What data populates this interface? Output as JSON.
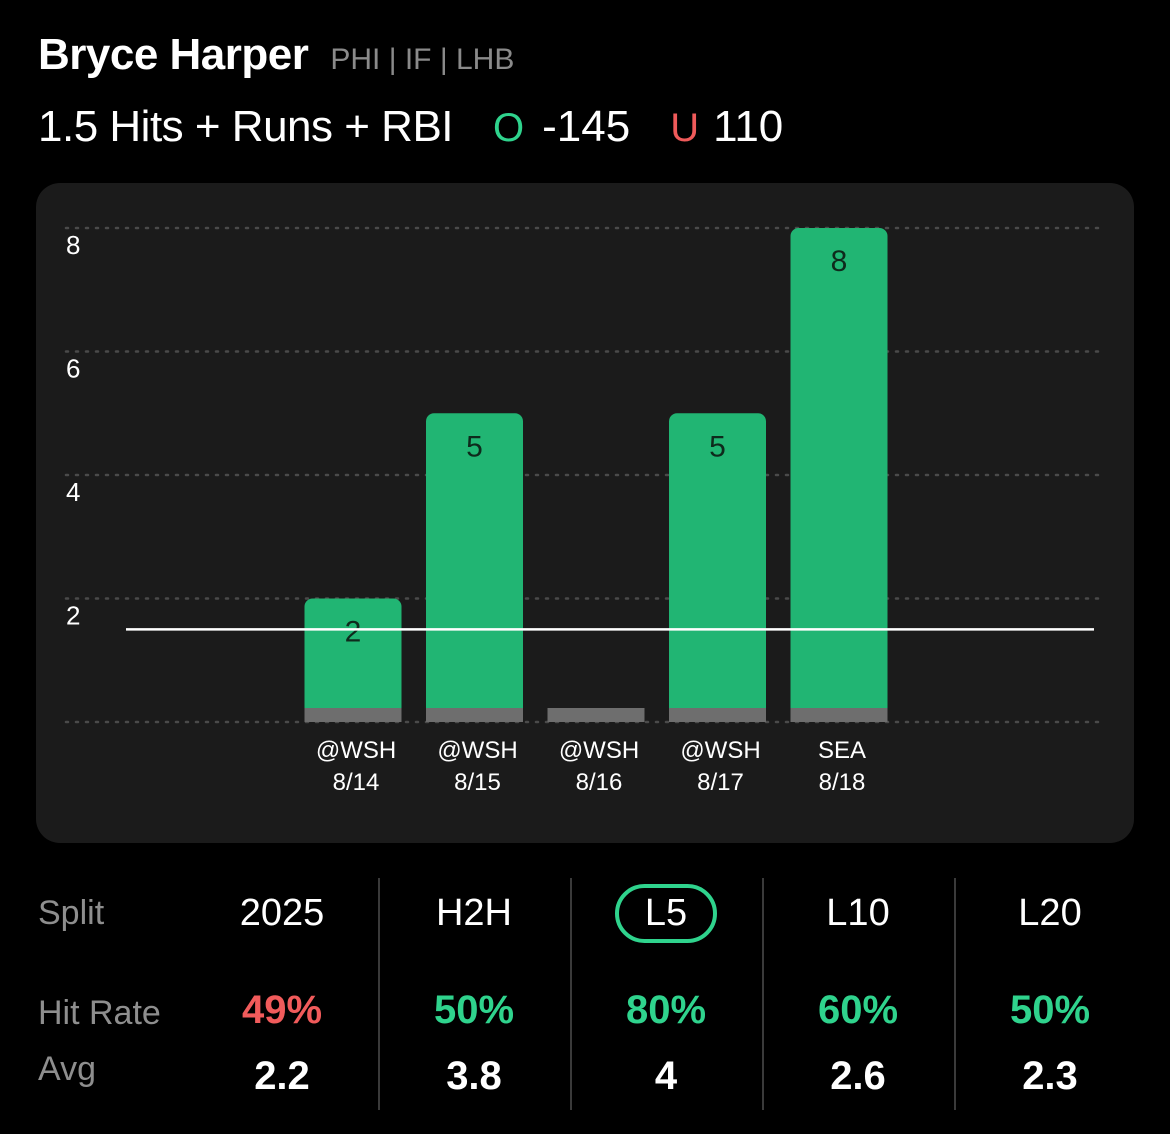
{
  "header": {
    "player_name": "Bryce Harper",
    "player_meta": "PHI | IF | LHB",
    "prop_line": "1.5 Hits + Runs + RBI",
    "over_letter": "O",
    "over_odds": "-145",
    "under_letter": "U",
    "under_odds": "110"
  },
  "chart_data": {
    "type": "bar",
    "categories": [
      "@WSH 8/14",
      "@WSH 8/15",
      "@WSH 8/16",
      "@WSH 8/17",
      "SEA 8/18"
    ],
    "opponents": [
      "@WSH",
      "@WSH",
      "@WSH",
      "@WSH",
      "SEA"
    ],
    "dates": [
      "8/14",
      "8/15",
      "8/16",
      "8/17",
      "8/18"
    ],
    "values": [
      2,
      5,
      0,
      5,
      8
    ],
    "data_labels": [
      "2",
      "5",
      "",
      "5",
      "8"
    ],
    "line_value": 1.5,
    "yticks": [
      2,
      4,
      6,
      8
    ],
    "ylim": [
      0,
      8
    ],
    "grid": true,
    "colors": {
      "bar": "#21b573",
      "baseline": "#6e6e6e",
      "line": "#ffffff",
      "label": "#0e2a1c"
    }
  },
  "splits": {
    "split_label": "Split",
    "hit_rate_label": "Hit Rate",
    "avg_label": "Avg",
    "columns": [
      {
        "header": "2025",
        "hit_rate": "49%",
        "avg": "2.2",
        "rate_color": "#f15b5b",
        "selected": false
      },
      {
        "header": "H2H",
        "hit_rate": "50%",
        "avg": "3.8",
        "rate_color": "#2fd38d",
        "selected": false
      },
      {
        "header": "L5",
        "hit_rate": "80%",
        "avg": "4",
        "rate_color": "#2fd38d",
        "selected": true
      },
      {
        "header": "L10",
        "hit_rate": "60%",
        "avg": "2.6",
        "rate_color": "#2fd38d",
        "selected": false
      },
      {
        "header": "L20",
        "hit_rate": "50%",
        "avg": "2.3",
        "rate_color": "#2fd38d",
        "selected": false
      }
    ]
  }
}
